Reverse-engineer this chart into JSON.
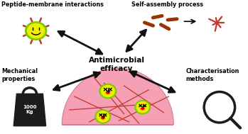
{
  "bg_color": "#ffffff",
  "text_color": "#000000",
  "title": "Antimicrobial\nefficacy",
  "labels": {
    "top_left": "Peptide-membrane interactions",
    "top_right": "Self-assembly process",
    "bot_left": "Mechanical\nproperties",
    "bot_right": "Characterisation\nmethods"
  },
  "weight_text": "1000\nKg",
  "gel_color": "#f5a0b5",
  "fiber_color": "#c0392b",
  "bacteria_body": "#eeee00",
  "bacteria_green": "#77cc00",
  "arrow_color": "#111111",
  "peptide_color": "#c0392b",
  "rod_color": "#993300",
  "figsize": [
    3.49,
    1.89
  ],
  "dpi": 100
}
